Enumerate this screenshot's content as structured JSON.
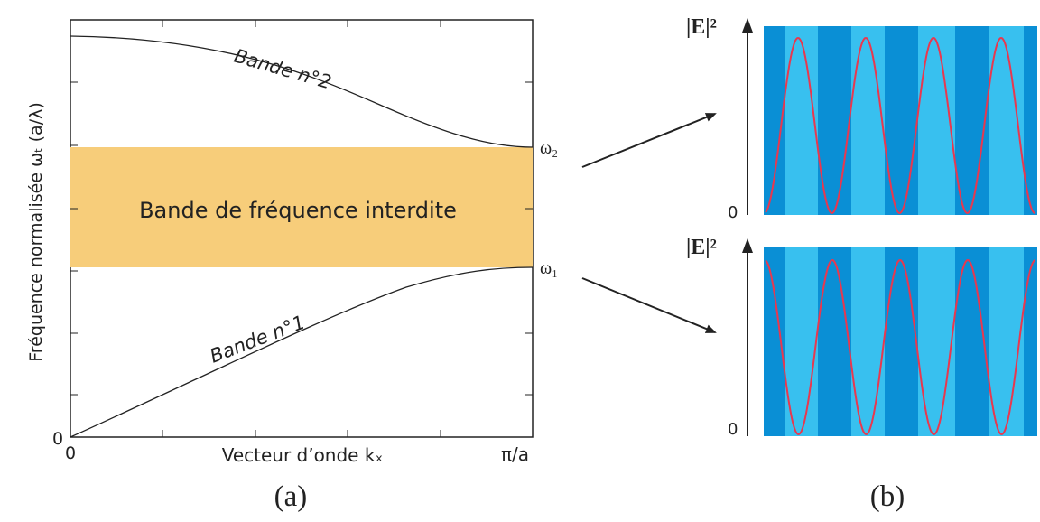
{
  "panel_a": {
    "y_axis_label": "Fréquence normalisée ωₜ (a/λ)",
    "x_axis_label": "Vecteur d’onde kₓ",
    "origin_y": "0",
    "origin_x": "0",
    "x_end_label": "π/a",
    "band_upper_label": "Bande n°2",
    "band_lower_label": "Bande n°1",
    "gap_label": "Bande de fréquence interdite",
    "omega2": "ω₂",
    "omega1": "ω₁",
    "caption": "(a)",
    "gap_color": "#f7cd7a"
  },
  "panel_b": {
    "top_axis_label": "|E|²",
    "top_zero": "0",
    "bottom_axis_label": "|E|²",
    "bottom_zero": "0",
    "caption": "(b)",
    "dark_stripe_color": "#0a8fd5",
    "light_stripe_color": "#38c0ef",
    "curve_color": "#e8384f"
  }
}
